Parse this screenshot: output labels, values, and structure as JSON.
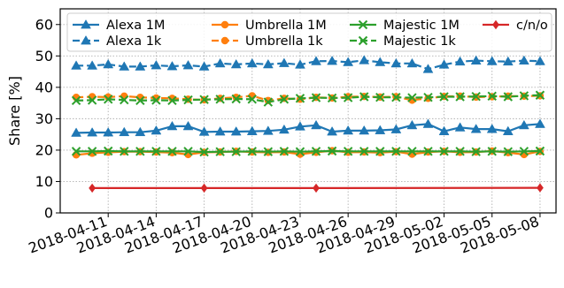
{
  "chart_data": {
    "type": "line",
    "title": "",
    "xlabel": "",
    "ylabel": "Share [%]",
    "ylim": [
      0,
      65
    ],
    "xlim": [
      "2018-04-08",
      "2018-05-09"
    ],
    "yticks": [
      0,
      10,
      20,
      30,
      40,
      50,
      60
    ],
    "xticks": [
      "2018-04-11",
      "2018-04-14",
      "2018-04-17",
      "2018-04-20",
      "2018-04-23",
      "2018-04-26",
      "2018-04-29",
      "2018-05-02",
      "2018-05-05",
      "2018-05-08"
    ],
    "grid": true,
    "legend_position": "top",
    "series": [
      {
        "name": "Alexa 1M",
        "color": "#1f77b4",
        "dashed": false,
        "marker": "triangle",
        "x": [
          "2018-04-09",
          "2018-04-10",
          "2018-04-11",
          "2018-04-12",
          "2018-04-13",
          "2018-04-14",
          "2018-04-15",
          "2018-04-16",
          "2018-04-17",
          "2018-04-18",
          "2018-04-19",
          "2018-04-20",
          "2018-04-21",
          "2018-04-22",
          "2018-04-23",
          "2018-04-24",
          "2018-04-25",
          "2018-04-26",
          "2018-04-27",
          "2018-04-28",
          "2018-04-29",
          "2018-04-30",
          "2018-05-01",
          "2018-05-02",
          "2018-05-03",
          "2018-05-04",
          "2018-05-05",
          "2018-05-06",
          "2018-05-07",
          "2018-05-08"
        ],
        "y": [
          25.5,
          25.6,
          25.6,
          25.7,
          25.7,
          26.2,
          27.6,
          27.6,
          25.8,
          25.9,
          25.9,
          26.0,
          26.1,
          26.5,
          27.5,
          27.9,
          25.9,
          26.2,
          26.2,
          26.3,
          26.6,
          27.9,
          28.3,
          26.0,
          27.2,
          26.7,
          26.7,
          26.0,
          27.9,
          28.3
        ]
      },
      {
        "name": "Alexa 1k",
        "color": "#1f77b4",
        "dashed": true,
        "marker": "triangle",
        "x": [
          "2018-04-09",
          "2018-04-10",
          "2018-04-11",
          "2018-04-12",
          "2018-04-13",
          "2018-04-14",
          "2018-04-15",
          "2018-04-16",
          "2018-04-17",
          "2018-04-18",
          "2018-04-19",
          "2018-04-20",
          "2018-04-21",
          "2018-04-22",
          "2018-04-23",
          "2018-04-24",
          "2018-04-25",
          "2018-04-26",
          "2018-04-27",
          "2018-04-28",
          "2018-04-29",
          "2018-04-30",
          "2018-05-01",
          "2018-05-02",
          "2018-05-03",
          "2018-05-04",
          "2018-05-05",
          "2018-05-06",
          "2018-05-07",
          "2018-05-08"
        ],
        "y": [
          46.9,
          46.9,
          47.3,
          46.6,
          46.6,
          47.0,
          46.7,
          47.0,
          46.6,
          47.6,
          47.3,
          47.6,
          47.3,
          47.7,
          47.2,
          48.3,
          48.4,
          48.0,
          48.6,
          48.0,
          47.6,
          47.6,
          45.8,
          47.2,
          48.2,
          48.5,
          48.3,
          48.2,
          48.5,
          48.3
        ]
      },
      {
        "name": "Umbrella 1M",
        "color": "#ff7f0e",
        "dashed": false,
        "marker": "circle",
        "x": [
          "2018-04-09",
          "2018-04-10",
          "2018-04-11",
          "2018-04-12",
          "2018-04-13",
          "2018-04-14",
          "2018-04-15",
          "2018-04-16",
          "2018-04-17",
          "2018-04-18",
          "2018-04-19",
          "2018-04-20",
          "2018-04-21",
          "2018-04-22",
          "2018-04-23",
          "2018-04-24",
          "2018-04-25",
          "2018-04-26",
          "2018-04-27",
          "2018-04-28",
          "2018-04-29",
          "2018-04-30",
          "2018-05-01",
          "2018-05-02",
          "2018-05-03",
          "2018-05-04",
          "2018-05-05",
          "2018-05-06",
          "2018-05-07",
          "2018-05-08"
        ],
        "y": [
          18.5,
          19.0,
          19.3,
          19.5,
          19.5,
          19.4,
          19.2,
          18.6,
          19.3,
          19.4,
          19.6,
          19.4,
          19.3,
          19.4,
          18.7,
          19.3,
          19.8,
          19.3,
          19.4,
          19.2,
          19.5,
          18.7,
          19.4,
          19.6,
          19.3,
          19.4,
          19.7,
          19.2,
          18.6,
          19.6
        ]
      },
      {
        "name": "Umbrella 1k",
        "color": "#ff7f0e",
        "dashed": true,
        "marker": "circle",
        "x": [
          "2018-04-09",
          "2018-04-10",
          "2018-04-11",
          "2018-04-12",
          "2018-04-13",
          "2018-04-14",
          "2018-04-15",
          "2018-04-16",
          "2018-04-17",
          "2018-04-18",
          "2018-04-19",
          "2018-04-20",
          "2018-04-21",
          "2018-04-22",
          "2018-04-23",
          "2018-04-24",
          "2018-04-25",
          "2018-04-26",
          "2018-04-27",
          "2018-04-28",
          "2018-04-29",
          "2018-04-30",
          "2018-05-01",
          "2018-05-02",
          "2018-05-03",
          "2018-05-04",
          "2018-05-05",
          "2018-05-06",
          "2018-05-07",
          "2018-05-08"
        ],
        "y": [
          36.8,
          37.0,
          36.9,
          37.2,
          36.8,
          36.6,
          36.5,
          36.2,
          36.0,
          36.5,
          36.8,
          37.3,
          35.8,
          36.5,
          36.2,
          36.8,
          36.6,
          37.0,
          37.1,
          36.9,
          37.0,
          35.9,
          36.5,
          37.1,
          37.2,
          36.9,
          37.0,
          37.2,
          37.2,
          37.3
        ]
      },
      {
        "name": "Majestic 1M",
        "color": "#2ca02c",
        "dashed": false,
        "marker": "x",
        "x": [
          "2018-04-09",
          "2018-04-10",
          "2018-04-11",
          "2018-04-12",
          "2018-04-13",
          "2018-04-14",
          "2018-04-15",
          "2018-04-16",
          "2018-04-17",
          "2018-04-18",
          "2018-04-19",
          "2018-04-20",
          "2018-04-21",
          "2018-04-22",
          "2018-04-23",
          "2018-04-24",
          "2018-04-25",
          "2018-04-26",
          "2018-04-27",
          "2018-04-28",
          "2018-04-29",
          "2018-04-30",
          "2018-05-01",
          "2018-05-02",
          "2018-05-03",
          "2018-05-04",
          "2018-05-05",
          "2018-05-06",
          "2018-05-07",
          "2018-05-08"
        ],
        "y": [
          19.6,
          19.6,
          19.7,
          19.6,
          19.6,
          19.6,
          19.6,
          19.6,
          19.4,
          19.5,
          19.5,
          19.6,
          19.5,
          19.6,
          19.5,
          19.6,
          19.7,
          19.6,
          19.6,
          19.6,
          19.6,
          19.6,
          19.6,
          19.6,
          19.6,
          19.5,
          19.6,
          19.5,
          19.6,
          19.7
        ]
      },
      {
        "name": "Majestic 1k",
        "color": "#2ca02c",
        "dashed": true,
        "marker": "x",
        "x": [
          "2018-04-09",
          "2018-04-10",
          "2018-04-11",
          "2018-04-12",
          "2018-04-13",
          "2018-04-14",
          "2018-04-15",
          "2018-04-16",
          "2018-04-17",
          "2018-04-18",
          "2018-04-19",
          "2018-04-20",
          "2018-04-21",
          "2018-04-22",
          "2018-04-23",
          "2018-04-24",
          "2018-04-25",
          "2018-04-26",
          "2018-04-27",
          "2018-04-28",
          "2018-04-29",
          "2018-04-30",
          "2018-05-01",
          "2018-05-02",
          "2018-05-03",
          "2018-05-04",
          "2018-05-05",
          "2018-05-06",
          "2018-05-07",
          "2018-05-08"
        ],
        "y": [
          35.8,
          35.9,
          36.2,
          36.0,
          35.8,
          35.9,
          35.8,
          36.0,
          36.1,
          36.2,
          36.3,
          36.2,
          35.3,
          36.2,
          36.5,
          36.7,
          36.6,
          36.7,
          37.0,
          36.8,
          36.8,
          36.7,
          36.8,
          37.0,
          37.0,
          37.1,
          37.2,
          37.0,
          37.3,
          37.5
        ]
      },
      {
        "name": "c/n/o",
        "color": "#d62728",
        "dashed": false,
        "marker": "diamond",
        "x": [
          "2018-04-10",
          "2018-04-17",
          "2018-04-24",
          "2018-05-08"
        ],
        "y": [
          7.9,
          7.9,
          7.9,
          8.0
        ]
      }
    ]
  }
}
